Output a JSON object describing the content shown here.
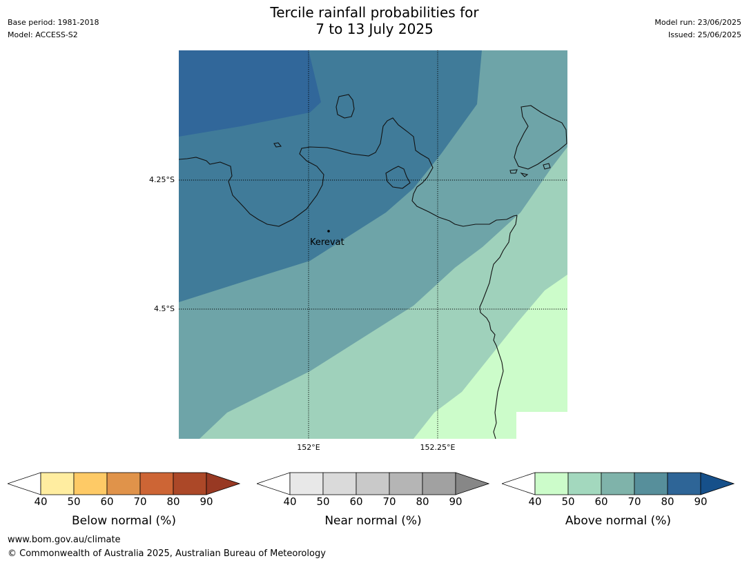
{
  "header": {
    "title_line1": "Tercile rainfall probabilities for",
    "title_line2": "7 to 13 July 2025",
    "base_period": "Base period: 1981-2018",
    "model": "Model: ACCESS-S2",
    "model_run": "Model run: 23/06/2025",
    "issued": "Issued: 25/06/2025"
  },
  "map": {
    "lat_labels": [
      "4.25°S",
      "4.5°S"
    ],
    "lon_labels": [
      "152°E",
      "152.25°E"
    ],
    "place": "Kerevat",
    "zone_colors": [
      "#31679a",
      "#407b99",
      "#6ea4a8",
      "#9fd1bb",
      "#ccfcca"
    ]
  },
  "colorbars": [
    {
      "title": "Below normal (%)",
      "ticks": [
        "40",
        "50",
        "60",
        "70",
        "80",
        "90"
      ],
      "colors": [
        "#ffeda0",
        "#feca66",
        "#e0934a",
        "#cd6535",
        "#ac4828"
      ],
      "under_color": "#ffffff",
      "over_color": "#983923"
    },
    {
      "title": "Near normal (%)",
      "ticks": [
        "40",
        "50",
        "60",
        "70",
        "80",
        "90"
      ],
      "colors": [
        "#e8e8e8",
        "#dadada",
        "#c9c9c9",
        "#b5b5b5",
        "#a1a1a1"
      ],
      "under_color": "#ffffff",
      "over_color": "#878787"
    },
    {
      "title": "Above normal (%)",
      "ticks": [
        "40",
        "50",
        "60",
        "70",
        "80",
        "90"
      ],
      "colors": [
        "#ccfcca",
        "#a3d8be",
        "#7fb3aa",
        "#578f9b",
        "#2e6597"
      ],
      "under_color": "#ffffff",
      "over_color": "#16508a"
    }
  ],
  "footer": {
    "url": "www.bom.gov.au/climate",
    "copyright": "© Commonwealth of Australia 2025, Australian Bureau of Meteorology"
  }
}
